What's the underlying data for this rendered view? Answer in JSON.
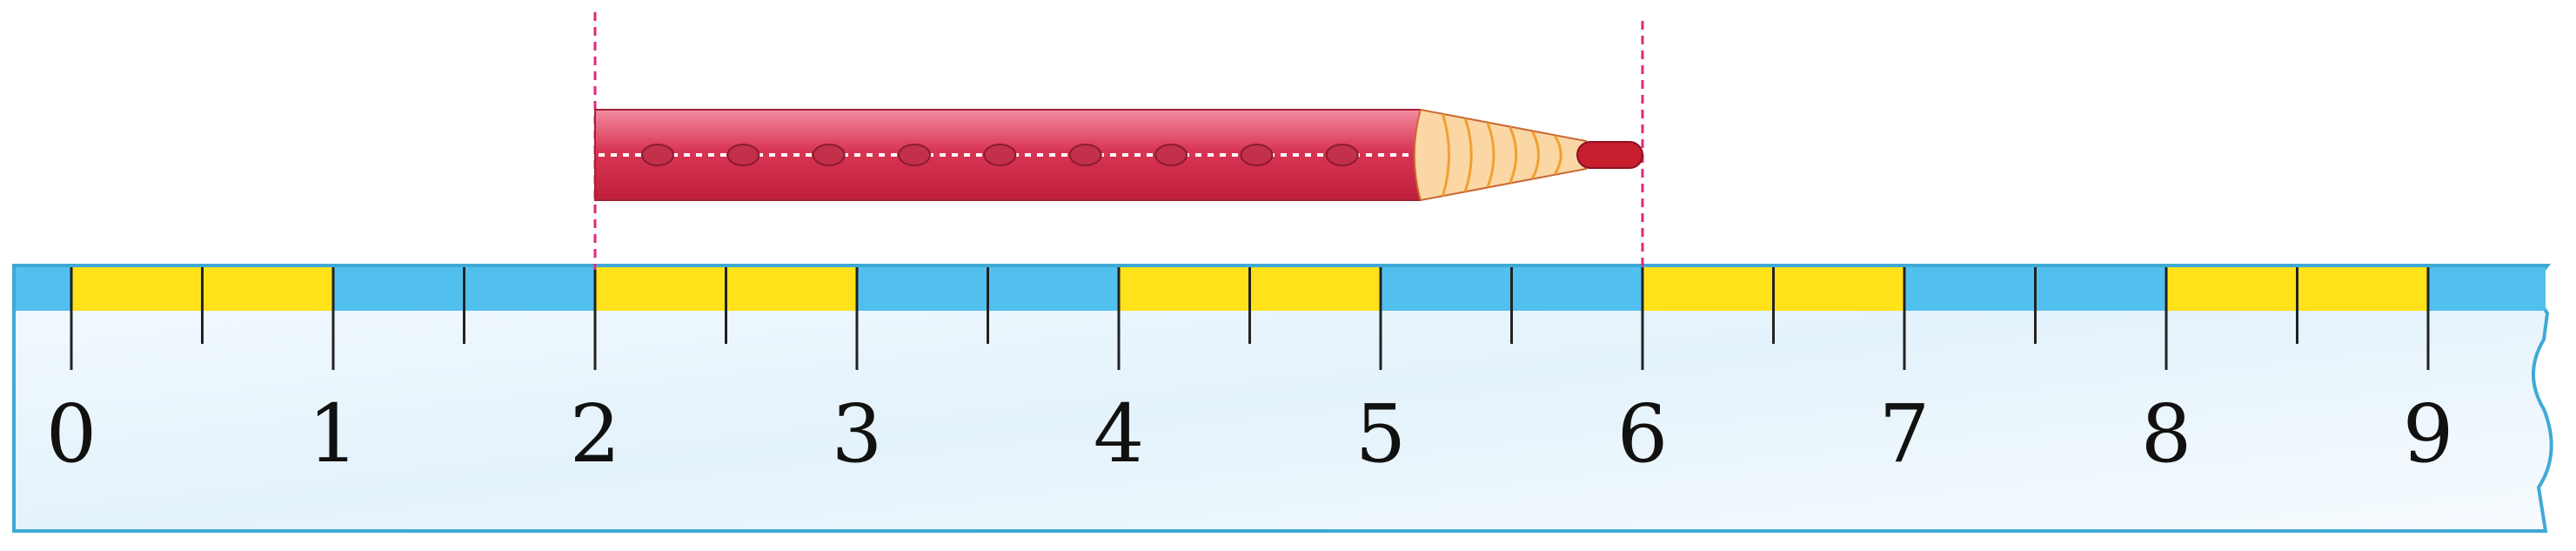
{
  "ruler": {
    "labels": [
      "0",
      "1",
      "2",
      "3",
      "4",
      "5",
      "6",
      "7",
      "8",
      "9"
    ],
    "ticks_per_unit": 2,
    "band_pattern": [
      "yellow",
      "blue",
      "yellow",
      "blue",
      "yellow",
      "blue",
      "yellow",
      "blue",
      "yellow"
    ]
  },
  "pencil": {
    "start_value": 2,
    "end_value": 6,
    "dots": 9
  },
  "colors": {
    "ruler_body": "#eaf5fc",
    "ruler_edge": "#3fa9d6",
    "band_blue": "#52c0ee",
    "band_yellow": "#ffe21a",
    "tick": "#222222",
    "pencil_body": "#d9354f",
    "pencil_light": "#f07e96",
    "pencil_wood": "#fbd7a6",
    "pencil_lead": "#c81e2e",
    "guide_line": "#e0297a"
  }
}
